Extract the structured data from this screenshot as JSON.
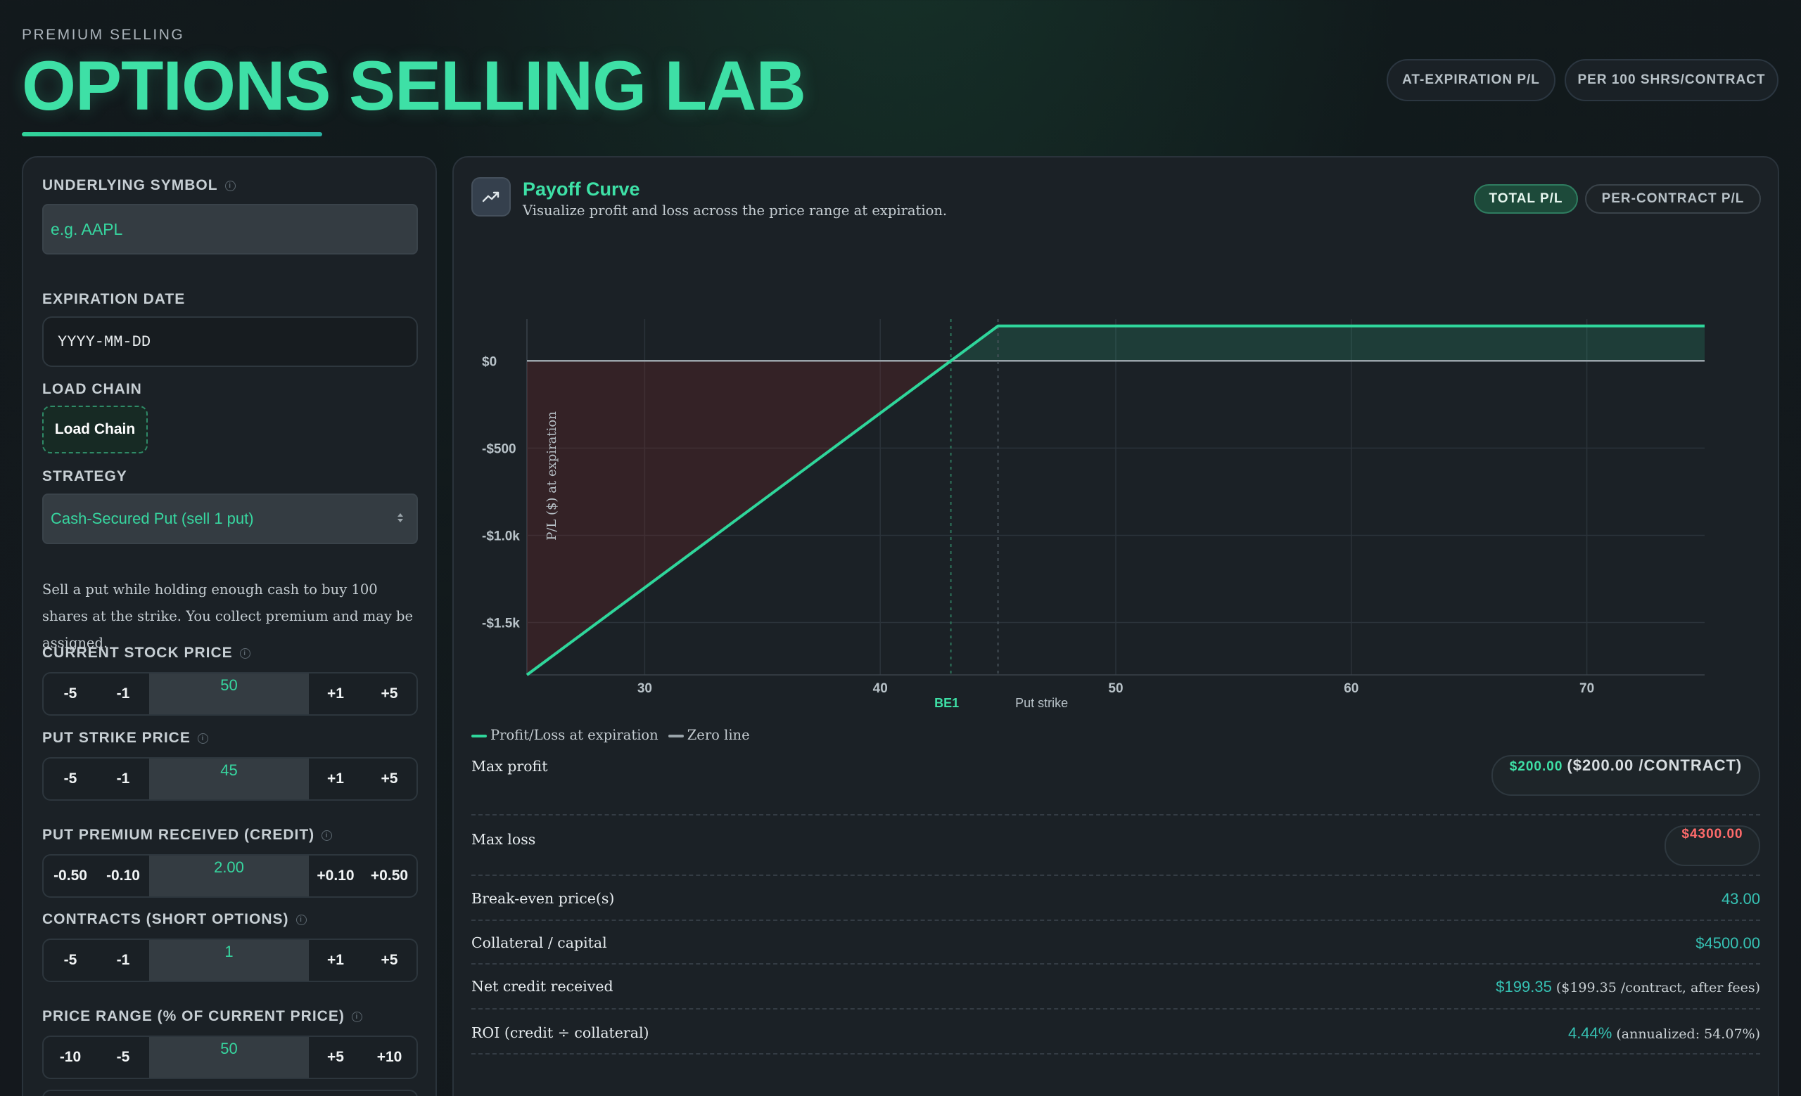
{
  "header": {
    "eyebrow": "PREMIUM SELLING",
    "title": "OPTIONS SELLING LAB",
    "pills": [
      "AT-EXPIRATION P/L",
      "PER 100 SHRS/CONTRACT"
    ]
  },
  "sidebar": {
    "symbol_label": "UNDERLYING SYMBOL",
    "symbol_placeholder": "e.g. AAPL",
    "expiration_label": "EXPIRATION DATE",
    "expiration_placeholder": "YYYY-MM-DD",
    "load_chain_label": "LOAD CHAIN",
    "load_chain_button": "Load Chain",
    "strategy_label": "STRATEGY",
    "strategy_value": "Cash-Secured Put (sell 1 put)",
    "description": "Sell a put while holding enough cash to buy 100 shares at the strike. You collect premium and may be assigned.",
    "steppers": [
      {
        "label": "CURRENT STOCK PRICE",
        "value": "50",
        "dec": [
          "-5",
          "-1"
        ],
        "inc": [
          "+1",
          "+5"
        ]
      },
      {
        "label": "PUT STRIKE PRICE",
        "value": "45",
        "dec": [
          "-5",
          "-1"
        ],
        "inc": [
          "+1",
          "+5"
        ]
      },
      {
        "label": "PUT PREMIUM RECEIVED (CREDIT)",
        "value": "2.00",
        "dec": [
          "-0.50",
          "-0.10"
        ],
        "inc": [
          "+0.10",
          "+0.50"
        ]
      },
      {
        "label": "CONTRACTS (SHORT OPTIONS)",
        "value": "1",
        "dec": [
          "-5",
          "-1"
        ],
        "inc": [
          "+1",
          "+5"
        ]
      },
      {
        "label": "PRICE RANGE (% OF CURRENT PRICE)",
        "value": "50",
        "dec": [
          "-10",
          "-5"
        ],
        "inc": [
          "+5",
          "+10"
        ]
      }
    ]
  },
  "panel": {
    "icon": "trend-chart-icon",
    "title": "Payoff Curve",
    "subtitle": "Visualize profit and loss across the price range at expiration.",
    "toggles": [
      "TOTAL P/L",
      "PER-CONTRACT P/L"
    ],
    "legend": [
      "Profit/Loss at expiration",
      "Zero line"
    ],
    "stats": {
      "max_profit_label": "Max profit",
      "max_profit_value": "$200.00",
      "max_profit_extra": "($200.00 /CONTRACT)",
      "max_loss_label": "Max loss",
      "max_loss_value": "$4300.00",
      "breakeven_label": "Break-even price(s)",
      "breakeven_value": "43.00",
      "collateral_label": "Collateral / capital",
      "collateral_value": "$4500.00",
      "net_credit_label": "Net credit received",
      "net_credit_value": "$199.35",
      "net_credit_extra": "($199.35 /contract, after fees)",
      "roi_label": "ROI (credit ÷ collateral)",
      "roi_value": "4.44%",
      "roi_extra": "(annualized: 54.07%)"
    }
  },
  "colors": {
    "accent": "#3ee0a6",
    "profit_line": "#2fd69b",
    "loss_text": "#ff6b6b",
    "value_teal": "#36c2b4"
  },
  "chart_data": {
    "type": "line",
    "title": "",
    "xlabel": "",
    "ylabel": "P/L ($) at expiration",
    "x": [
      25,
      43,
      45,
      75
    ],
    "y": [
      -1800,
      0,
      200,
      200
    ],
    "xlim": [
      25,
      75
    ],
    "ylim": [
      -1800,
      400
    ],
    "xticks": [
      30,
      40,
      50,
      60,
      70
    ],
    "xtick_labels": [
      "30",
      "40",
      "50",
      "60",
      "70"
    ],
    "yticks": [
      0,
      -500,
      -1000,
      -1500
    ],
    "ytick_labels": [
      "$0",
      "-$500",
      "-$1.0k",
      "-$1.5k"
    ],
    "markers": [
      {
        "x": 43,
        "label": "BE1"
      },
      {
        "x": 45,
        "label": "Put strike"
      }
    ],
    "grid": true
  }
}
